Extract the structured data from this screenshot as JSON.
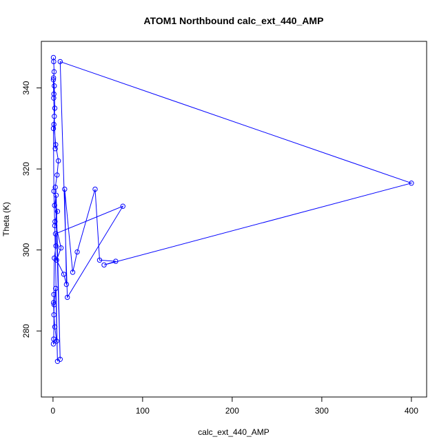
{
  "chart_data": {
    "type": "line",
    "title": "ATOM1 Northbound calc_ext_440_AMP",
    "xlabel": "calc_ext_440_AMP",
    "ylabel": "Theta (K)",
    "xlim": [
      -13,
      417
    ],
    "ylim": [
      263.7,
      351.5
    ],
    "x_ticks": [
      0,
      100,
      200,
      300,
      400
    ],
    "y_ticks": [
      280,
      300,
      320,
      340
    ],
    "grid": false,
    "legend": "none",
    "series_color": "#0000ff",
    "markers": "open-circle",
    "series": [
      {
        "x": [
          0.5,
          0.8,
          1.2,
          0.6,
          1.5,
          2.0,
          1.0,
          3.0,
          6.0,
          4.5,
          2.5,
          8.0,
          3.5,
          1.8,
          5.0,
          2.2,
          9.0,
          4.0,
          12.0,
          15.0,
          13.0,
          22.0,
          27.0,
          47.0,
          52.0,
          70.0,
          57.0,
          400.0,
          8.0,
          16.0,
          78.0,
          2.8,
          3.2,
          1.5,
          0.9,
          0.6,
          1.0,
          2.0,
          4.0,
          0.5,
          0.8,
          1.2,
          3.0,
          5.0,
          2.0,
          1.0,
          0.5,
          1.5,
          2.5,
          0.8,
          0.5,
          1.0
        ],
        "y": [
          347.5,
          346.5,
          344.0,
          342.5,
          340.5,
          335.0,
          331.0,
          326.0,
          322.0,
          318.5,
          315.5,
          273.0,
          313.5,
          311.0,
          309.5,
          307.0,
          300.5,
          297.5,
          294.0,
          291.5,
          315.0,
          294.5,
          299.5,
          315.0,
          297.5,
          297.2,
          296.3,
          316.5,
          346.5,
          288.3,
          310.8,
          304.0,
          301.0,
          298.0,
          289.0,
          287.0,
          284.0,
          281.0,
          277.5,
          276.8,
          278.0,
          286.5,
          290.5,
          272.5,
          306.0,
          314.5,
          330.0,
          333.0,
          325.0,
          337.5,
          342.0,
          338.5
        ]
      }
    ]
  }
}
